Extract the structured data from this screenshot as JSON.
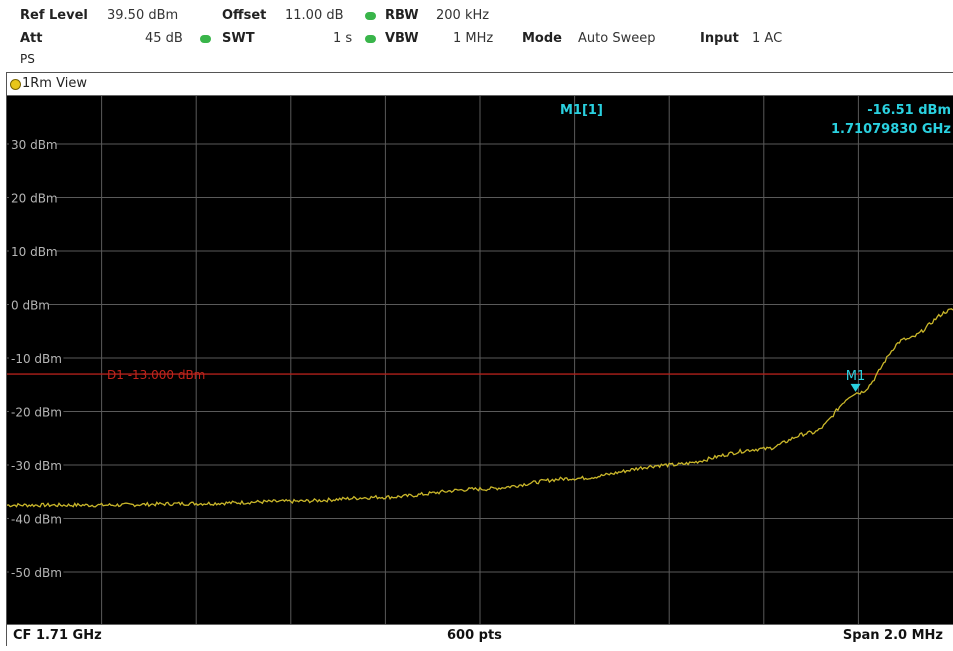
{
  "header": {
    "ref_level_label": "Ref Level",
    "ref_level_value": "39.50 dBm",
    "offset_label": "Offset",
    "offset_value": "11.00 dB",
    "rbw_label": "RBW",
    "rbw_value": "200 kHz",
    "att_label": "Att",
    "att_value": "45 dB",
    "swt_label": "SWT",
    "swt_value": "1 s",
    "vbw_label": "VBW",
    "vbw_value": "1 MHz",
    "mode_label": "Mode",
    "mode_value": "Auto Sweep",
    "input_label": "Input",
    "input_value": "1 AC",
    "ps_label": "PS"
  },
  "window": {
    "title": "1Rm View"
  },
  "marker": {
    "label": "M1[1]",
    "level": "-16.51 dBm",
    "freq": "1.71079830 GHz",
    "tag": "M1"
  },
  "display_line": {
    "label": "D1 -13.000 dBm",
    "level_dbm": -13
  },
  "footer": {
    "center": "CF 1.71 GHz",
    "points": "600 pts",
    "span": "Span 2.0 MHz"
  },
  "colors": {
    "trace": "#c9b62a",
    "display_line": "#b0201a",
    "marker": "#2ad1e0",
    "grid": "#5a5a5a",
    "indicator_dot": "#39b54a"
  },
  "chart_data": {
    "type": "line",
    "ylim": [
      -60,
      39.5
    ],
    "y_ticks": [
      "30 dBm",
      "20 dBm",
      "10 dBm",
      "0 dBm",
      "-10 dBm",
      "-20 dBm",
      "-30 dBm",
      "-40 dBm",
      "-50 dBm"
    ],
    "y_tick_values": [
      30,
      20,
      10,
      0,
      -10,
      -20,
      -30,
      -40,
      -50
    ],
    "x_divisions": 10,
    "series": [
      {
        "x_div": [
          0,
          1,
          2,
          3,
          4,
          5,
          6,
          7,
          8,
          8.5,
          9,
          9.5,
          10
        ],
        "y_dbm": [
          -37.5,
          -37.5,
          -37.2,
          -36.8,
          -36.0,
          -34.5,
          -32.5,
          -30.0,
          -27.0,
          -24.0,
          -16.5,
          -6.5,
          -1.0
        ]
      }
    ],
    "marker_x_div": 8.97,
    "marker_y_dbm": -16.51
  }
}
